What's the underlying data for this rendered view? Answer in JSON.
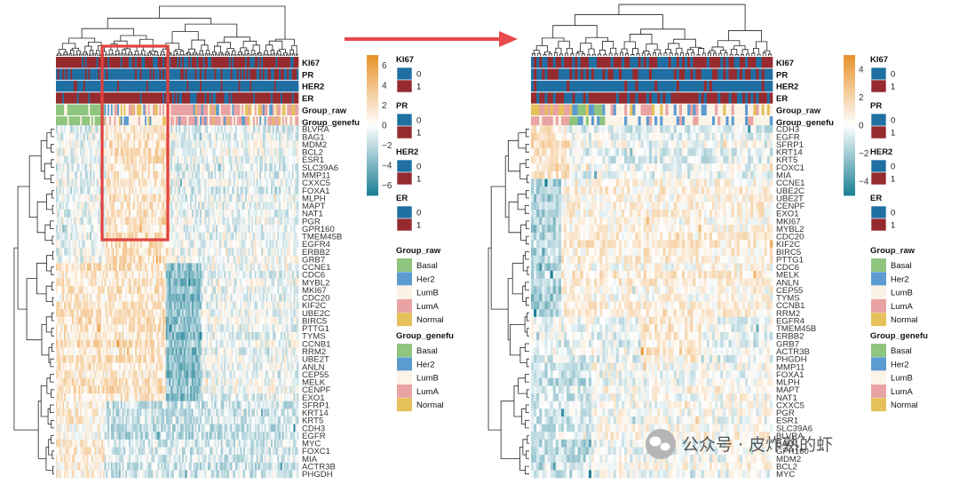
{
  "chart_data": [
    {
      "type": "heatmap",
      "panel": "left",
      "annotation_tracks": [
        "KI67",
        "PR",
        "HER2",
        "ER",
        "Group_raw",
        "Group_genefu"
      ],
      "row_labels": [
        "BLVRA",
        "BAG1",
        "MDM2",
        "BCL2",
        "ESR1",
        "SLC39A6",
        "MMP11",
        "CXXC5",
        "FOXA1",
        "MLPH",
        "MAPT",
        "NAT1",
        "PGR",
        "GPR160",
        "TMEM45B",
        "EGFR4",
        "ERBB2",
        "GRB7",
        "CCNE1",
        "CDC6",
        "MYBL2",
        "MKI67",
        "CDC20",
        "KIF2C",
        "UBE2C",
        "BIRC5",
        "PTTG1",
        "TYMS",
        "CCNB1",
        "RRM2",
        "UBE2T",
        "ANLN",
        "CEP55",
        "MELK",
        "CENPF",
        "EXO1",
        "SFRP1",
        "KRT14",
        "KRT5",
        "CDH3",
        "EGFR",
        "MYC",
        "FOXC1",
        "MIA",
        "ACTR3B",
        "PHGDH"
      ],
      "colorbar": {
        "min": -7,
        "max": 7,
        "ticks": [
          6,
          4,
          2,
          0,
          -2,
          -4,
          -6
        ],
        "low_color": "#1b7f95",
        "mid_color": "#ffffff",
        "high_color": "#e8922a"
      }
    },
    {
      "type": "heatmap",
      "panel": "right",
      "annotation_tracks": [
        "KI67",
        "PR",
        "HER2",
        "ER",
        "Group_raw",
        "Group_genefu"
      ],
      "row_labels": [
        "CDH3",
        "EGFR",
        "SFRP1",
        "KRT14",
        "KRT5",
        "FOXC1",
        "MIA",
        "CCNE1",
        "UBE2C",
        "UBE2T",
        "CENPF",
        "EXO1",
        "MKI67",
        "MYBL2",
        "CDC20",
        "KIF2C",
        "BIRC5",
        "PTTG1",
        "CDC6",
        "MELK",
        "ANLN",
        "CEP55",
        "TYMS",
        "CCNB1",
        "RRM2",
        "EGFR4",
        "TMEM45B",
        "ERBB2",
        "GRB7",
        "ACTR3B",
        "PHGDH",
        "MMP11",
        "FOXA1",
        "MLPH",
        "MAPT",
        "NAT1",
        "CXXC5",
        "PGR",
        "ESR1",
        "SLC39A6",
        "BLVRA",
        "BAG1",
        "GPR160",
        "MDM2",
        "BCL2",
        "MYC"
      ],
      "colorbar": {
        "min": -5,
        "max": 5,
        "ticks": [
          4,
          2,
          0,
          -2,
          -4
        ],
        "low_color": "#1b7f95",
        "mid_color": "#ffffff",
        "high_color": "#e8922a"
      }
    }
  ],
  "legend": {
    "binary_groups": [
      {
        "title": "KI67",
        "labels": [
          "0",
          "1"
        ]
      },
      {
        "title": "PR",
        "labels": [
          "0",
          "1"
        ]
      },
      {
        "title": "HER2",
        "labels": [
          "0",
          "1"
        ]
      },
      {
        "title": "ER",
        "labels": [
          "0",
          "1"
        ]
      }
    ],
    "category_groups": [
      {
        "title": "Group_raw",
        "labels": [
          "Basal",
          "Her2",
          "LumB",
          "LumA",
          "Normal"
        ]
      },
      {
        "title": "Group_genefu",
        "labels": [
          "Basal",
          "Her2",
          "LumB",
          "LumA",
          "Normal"
        ]
      }
    ],
    "binary_colors": [
      "#1f6fa3",
      "#962b2f"
    ],
    "category_colors": [
      "#8fc57e",
      "#5b9bd0",
      "#fbf3e6",
      "#e9a3a3",
      "#e5c15b"
    ]
  },
  "watermark": {
    "text": "公众号 · 皮炸熟的虾"
  }
}
